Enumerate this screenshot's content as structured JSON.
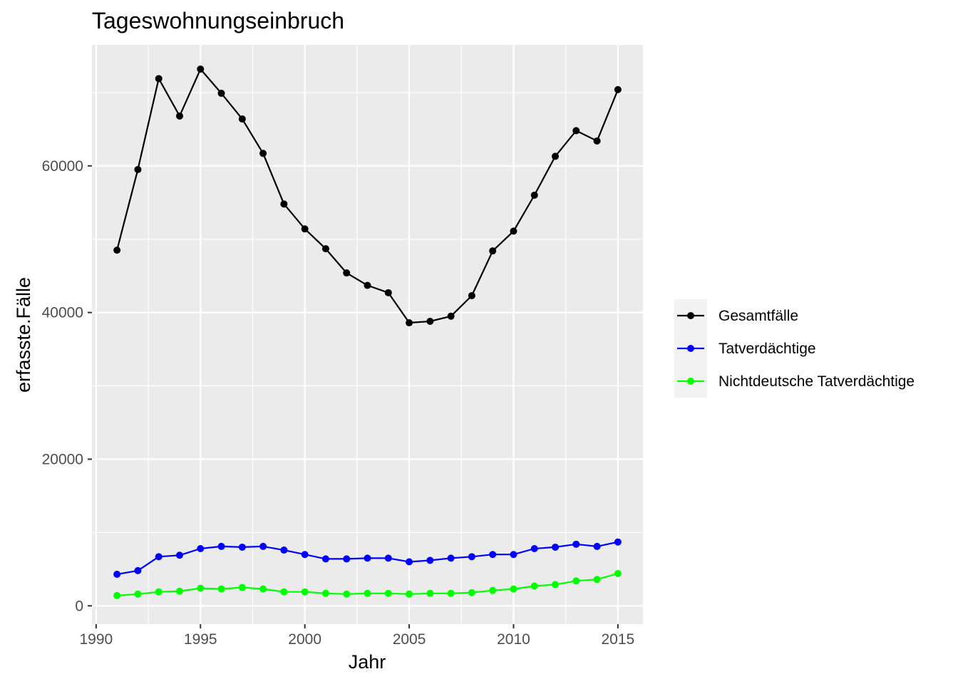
{
  "chart_data": {
    "type": "line",
    "title": "Tageswohnungseinbruch",
    "xlabel": "Jahr",
    "ylabel": "erfasste.Fälle",
    "x": [
      1991,
      1992,
      1993,
      1994,
      1995,
      1996,
      1997,
      1998,
      1999,
      2000,
      2001,
      2002,
      2003,
      2004,
      2005,
      2006,
      2007,
      2008,
      2009,
      2010,
      2011,
      2012,
      2013,
      2014,
      2015
    ],
    "xlim": [
      1989.8,
      2016.2
    ],
    "ylim": [
      -2500,
      76500
    ],
    "x_ticks": [
      1990,
      1995,
      2000,
      2005,
      2010,
      2015
    ],
    "y_ticks": [
      0,
      20000,
      40000,
      60000
    ],
    "grid": true,
    "legend_position": "right",
    "series": [
      {
        "name": "Gesamtfälle",
        "color": "#000000",
        "values": [
          48500,
          59500,
          71900,
          66800,
          73200,
          69900,
          66400,
          61700,
          54800,
          51400,
          48700,
          45400,
          43700,
          42700,
          38600,
          38800,
          39500,
          42300,
          48400,
          51100,
          56000,
          61300,
          64800,
          63400,
          70400
        ]
      },
      {
        "name": "Tatverdächtige",
        "color": "#0000ff",
        "values": [
          4300,
          4800,
          6700,
          6900,
          7800,
          8100,
          8000,
          8100,
          7600,
          7000,
          6400,
          6400,
          6500,
          6500,
          6000,
          6200,
          6500,
          6700,
          7000,
          7000,
          7800,
          8000,
          8400,
          8100,
          8700
        ]
      },
      {
        "name": "Nichtdeutsche Tatverdächtige",
        "color": "#00ff00",
        "values": [
          1400,
          1600,
          1900,
          2000,
          2400,
          2300,
          2500,
          2300,
          1900,
          1900,
          1700,
          1600,
          1700,
          1700,
          1600,
          1700,
          1700,
          1800,
          2100,
          2300,
          2700,
          2900,
          3400,
          3600,
          4400
        ]
      }
    ]
  }
}
